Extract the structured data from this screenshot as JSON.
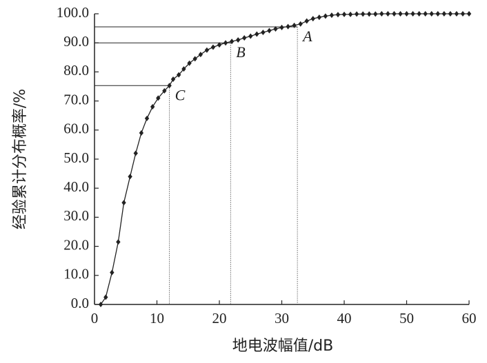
{
  "chart_data": {
    "type": "line",
    "xlabel": "地电波幅值/dB",
    "ylabel": "经验累计分布概率/%",
    "x": [
      1,
      1.8,
      2.8,
      3.8,
      4.7,
      5.7,
      6.6,
      7.5,
      8.4,
      9.3,
      10.2,
      11.2,
      12,
      12.6,
      13.5,
      14.3,
      15.2,
      16.1,
      17,
      18,
      19,
      20,
      21,
      22,
      23,
      24,
      25,
      26,
      27,
      28,
      29,
      30,
      31,
      32,
      33,
      34,
      35,
      36,
      37,
      38,
      39,
      40,
      41,
      42,
      43,
      44,
      45,
      46,
      47,
      48,
      49,
      50,
      51,
      52,
      53,
      54,
      55,
      56,
      57,
      58,
      59,
      60
    ],
    "series": [
      {
        "name": "经验累计分布",
        "color": "#222222",
        "values": [
          0,
          2.5,
          11,
          21.5,
          35,
          44,
          52,
          59,
          64,
          68,
          71,
          73.5,
          75.3,
          77.5,
          79,
          81,
          83,
          84.5,
          86,
          87.5,
          88.5,
          89.3,
          90,
          90.5,
          91,
          91.7,
          92.3,
          93,
          93.6,
          94.2,
          94.8,
          95.3,
          95.6,
          96,
          96.5,
          97.5,
          98.3,
          98.8,
          99.2,
          99.5,
          99.7,
          99.8,
          99.8,
          99.9,
          99.9,
          99.9,
          99.9,
          100,
          100,
          100,
          100,
          100,
          100,
          100,
          100,
          100,
          100,
          100,
          100,
          100,
          100,
          100
        ]
      }
    ],
    "xlim": [
      0,
      60
    ],
    "xticks": [
      0,
      10,
      20,
      30,
      40,
      50,
      60
    ],
    "ylim": [
      0,
      100
    ],
    "yticks": [
      {
        "value": 0,
        "label": "0.0"
      },
      {
        "value": 10,
        "label": "10.0"
      },
      {
        "value": 20,
        "label": "20.0"
      },
      {
        "value": 30,
        "label": "30.0"
      },
      {
        "value": 40,
        "label": "40.0"
      },
      {
        "value": 50,
        "label": "50.0"
      },
      {
        "value": 60,
        "label": "60.0"
      },
      {
        "value": 70,
        "label": "70.0"
      },
      {
        "value": 80,
        "label": "80.0"
      },
      {
        "value": 90,
        "label": "90.0"
      },
      {
        "value": 100,
        "label": "100.0"
      }
    ],
    "grid": false,
    "annotations": [
      {
        "text": "A",
        "x": 32.5,
        "y": 95.5
      },
      {
        "text": "B",
        "x": 21.8,
        "y": 90
      },
      {
        "text": "C",
        "x": 12,
        "y": 75.3
      }
    ]
  }
}
